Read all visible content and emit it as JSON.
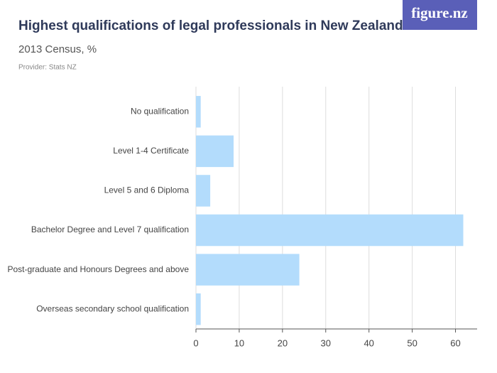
{
  "chart_data": {
    "type": "barh",
    "title": "Highest qualifications of legal professionals in New Zealand",
    "subtitle": "2013 Census, %",
    "source": "Provider: Stats NZ",
    "logo": "figure.nz",
    "categories": [
      "No qualification",
      "Level 1-4 Certificate",
      "Level 5 and 6 Diploma",
      "Bachelor Degree and Level 7 qualification",
      "Post-graduate and Honours Degrees and above",
      "Overseas secondary school qualification"
    ],
    "values": [
      1.1,
      8.7,
      3.3,
      61.8,
      23.9,
      1.1
    ],
    "color": "#b3dcfc",
    "xlim": [
      0,
      65
    ],
    "xticks": [
      0,
      10,
      20,
      30,
      40,
      50,
      60
    ],
    "grid": true
  }
}
